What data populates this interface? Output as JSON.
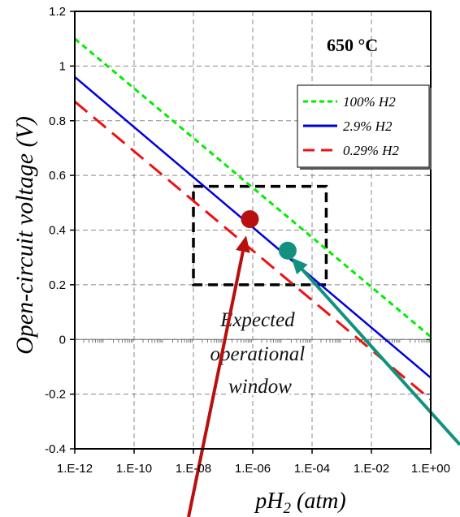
{
  "chart_data": {
    "type": "line",
    "title": "",
    "xlabel": "pH2 (atm)",
    "xlabel_main": "pH",
    "xlabel_sub": "2",
    "xlabel_suffix": " (atm)",
    "ylabel": "Open-circuit voltage (V)",
    "x_scale": "log",
    "xlim": [
      1e-12,
      1
    ],
    "ylim": [
      -0.4,
      1.2
    ],
    "grid": true,
    "legend_position": "top-right",
    "x_ticks": [
      1e-12,
      1e-10,
      1e-08,
      1e-06,
      0.0001,
      0.01,
      1
    ],
    "x_tick_labels": [
      "1.E-12",
      "1.E-10",
      "1.E-08",
      "1.E-06",
      "1.E-04",
      "1.E-02",
      "1.E+00"
    ],
    "y_ticks": [
      -0.4,
      -0.2,
      0,
      0.2,
      0.4,
      0.6,
      0.8,
      1,
      1.2
    ],
    "y_tick_labels": [
      "-0.4",
      "-0.2",
      "0",
      "0.2",
      "0.4",
      "0.6",
      "0.8",
      "1",
      "1.2"
    ],
    "series": [
      {
        "name": "100% H2",
        "color": "#00ee00",
        "dash": "short-dash",
        "x": [
          1e-12,
          1
        ],
        "y": [
          1.1,
          0.01
        ]
      },
      {
        "name": "2.9% H2",
        "color": "#0000dd",
        "dash": "solid",
        "x": [
          1e-12,
          1
        ],
        "y": [
          0.96,
          -0.14
        ]
      },
      {
        "name": "0.29% H2",
        "color": "#ee1111",
        "dash": "long-dash",
        "x": [
          1e-12,
          1
        ],
        "y": [
          0.87,
          -0.22
        ]
      }
    ],
    "points": [
      {
        "x": 8e-07,
        "y": 0.44,
        "color": "#b80f0f"
      },
      {
        "x": 1.5e-05,
        "y": 0.325,
        "color": "#12927e"
      }
    ],
    "window_box": {
      "x_range": [
        1e-08,
        0.0003
      ],
      "y_range": [
        0.2,
        0.56
      ],
      "color": "#000000"
    },
    "annotations": {
      "temperature": "650 °C",
      "window_lines": [
        "Expected",
        "operational",
        "window"
      ]
    },
    "arrows": [
      {
        "color": "#b80f0f",
        "target": {
          "x": 6e-07,
          "y": 0.38
        }
      },
      {
        "color": "#12927e",
        "target": {
          "x": 2e-05,
          "y": 0.3
        }
      }
    ]
  }
}
